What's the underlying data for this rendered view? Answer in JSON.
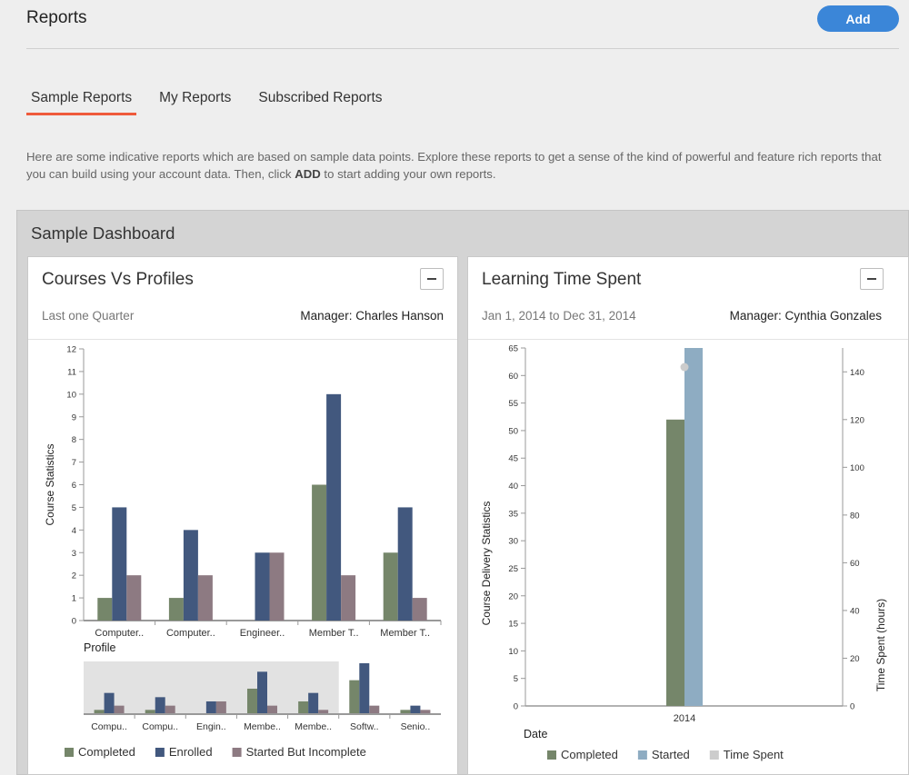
{
  "header": {
    "title": "Reports",
    "add_label": "Add"
  },
  "tabs": [
    {
      "label": "Sample Reports",
      "active": true
    },
    {
      "label": "My Reports",
      "active": false
    },
    {
      "label": "Subscribed Reports",
      "active": false
    }
  ],
  "intro": {
    "text_before": "Here are some indicative reports which are based on sample data points. Explore these reports to get a sense of the kind of powerful and feature rich reports that you can build using your account data. Then, click ",
    "bold": "ADD",
    "text_after": " to start adding your own reports."
  },
  "dashboard": {
    "title": "Sample Dashboard",
    "panels": [
      {
        "title": "Courses Vs Profiles",
        "subtitle": "Last one Quarter",
        "manager": "Manager: Charles Hanson"
      },
      {
        "title": "Learning Time Spent",
        "subtitle": "Jan 1, 2014 to Dec 31, 2014",
        "manager": "Manager: Cynthia Gonzales"
      }
    ]
  },
  "colors": {
    "completed": "#75866a",
    "enrolled": "#42587e",
    "started_incomplete": "#8d7a82",
    "started": "#8eacc2",
    "time_spent": "#cccccc",
    "accent": "#3b86d8",
    "tab_underline": "#ef5a3b"
  },
  "chart_data": [
    {
      "type": "bar",
      "ylabel": "Course Statistics",
      "xlabel": "Profile",
      "ylim": [
        0,
        12
      ],
      "yticks": [
        0,
        1,
        2,
        3,
        4,
        5,
        6,
        7,
        8,
        9,
        10,
        11,
        12
      ],
      "categories": [
        "Computer..",
        "Computer..",
        "Engineer..",
        "Member T..",
        "Member T.."
      ],
      "series": [
        {
          "name": "Completed",
          "values": [
            1,
            1,
            0,
            6,
            3
          ]
        },
        {
          "name": "Enrolled",
          "values": [
            5,
            4,
            3,
            10,
            5
          ]
        },
        {
          "name": "Started But Incomplete",
          "values": [
            2,
            2,
            3,
            2,
            1
          ]
        }
      ],
      "navigator": {
        "categories": [
          "Compu..",
          "Compu..",
          "Engin..",
          "Membe..",
          "Membe..",
          "Softw..",
          "Senio.."
        ],
        "series": [
          {
            "name": "Completed",
            "values": [
              1,
              1,
              0,
              6,
              3,
              8,
              1
            ]
          },
          {
            "name": "Enrolled",
            "values": [
              5,
              4,
              3,
              10,
              5,
              12,
              2
            ]
          },
          {
            "name": "Started But Incomplete",
            "values": [
              2,
              2,
              3,
              2,
              1,
              2,
              1
            ]
          }
        ],
        "window": [
          0,
          5
        ]
      },
      "legend": [
        "Completed",
        "Enrolled",
        "Started But Incomplete"
      ]
    },
    {
      "type": "bar",
      "ylabel": "Course Delivery Statistics",
      "y2label": "Time Spent (hours)",
      "xlabel": "Date",
      "ylim": [
        0,
        65
      ],
      "yticks": [
        0,
        5,
        10,
        15,
        20,
        25,
        30,
        35,
        40,
        45,
        50,
        55,
        60,
        65
      ],
      "y2lim": [
        0,
        150
      ],
      "y2ticks": [
        0,
        20,
        40,
        60,
        80,
        100,
        120,
        140
      ],
      "categories": [
        "2014"
      ],
      "series": [
        {
          "name": "Completed",
          "values": [
            52
          ]
        },
        {
          "name": "Started",
          "values": [
            65
          ]
        },
        {
          "name": "Time Spent",
          "values": [
            142
          ],
          "axis": "right",
          "kind": "point"
        }
      ],
      "legend": [
        "Completed",
        "Started",
        "Time Spent"
      ]
    }
  ]
}
